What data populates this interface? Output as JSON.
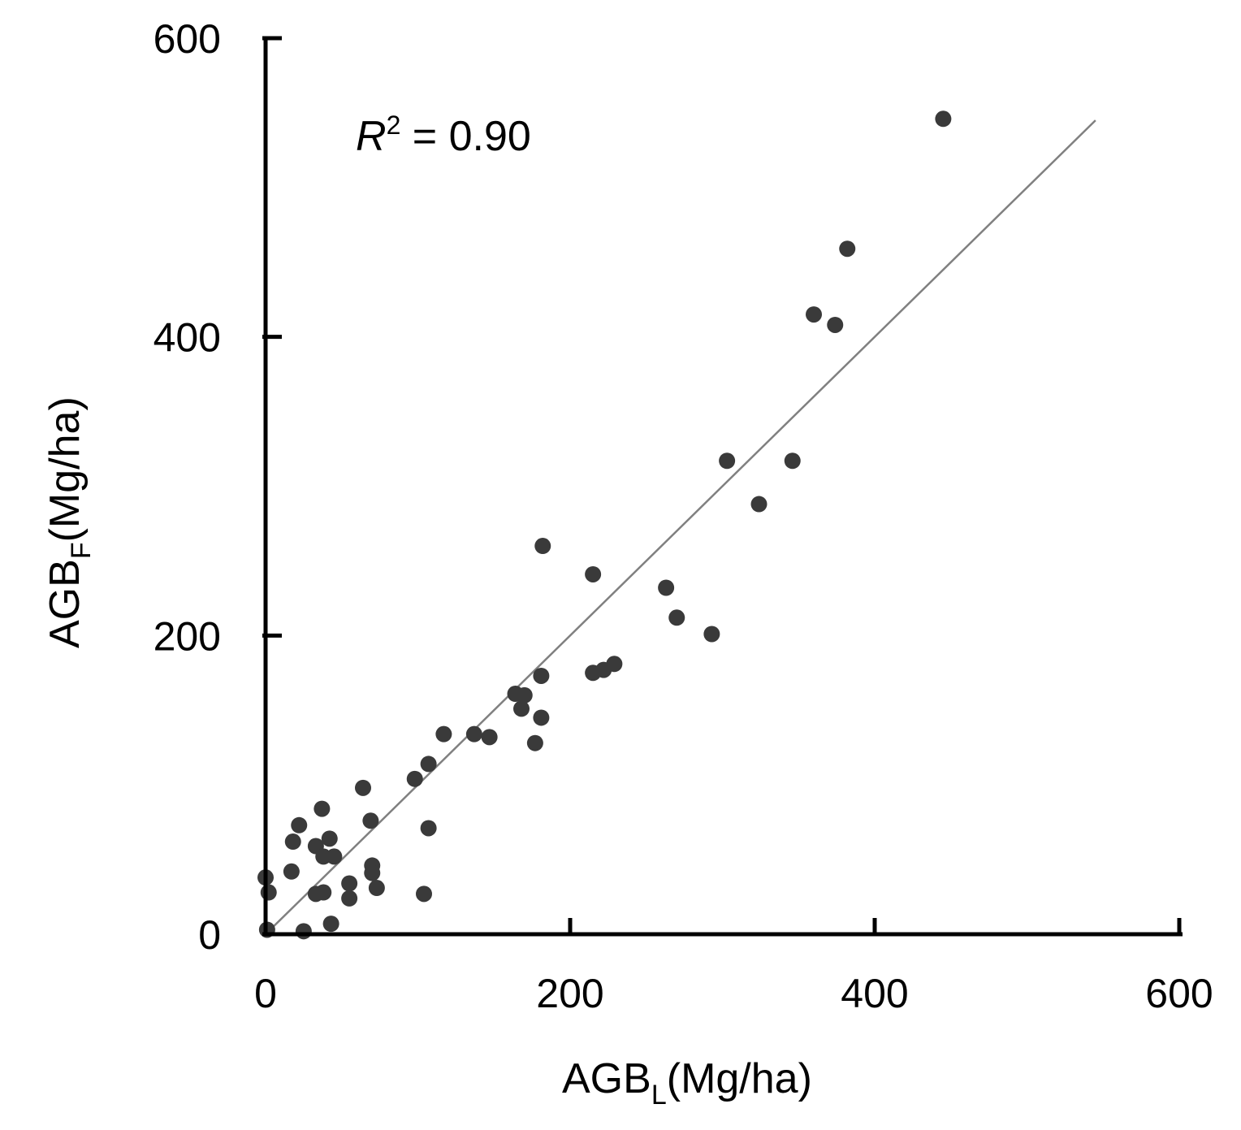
{
  "chart_data": {
    "type": "scatter",
    "title": "",
    "xlabel": {
      "main": "AGB",
      "sub": "L",
      "unit": "(Mg/ha)"
    },
    "ylabel": {
      "main": "AGB",
      "sub": "F",
      "unit": "(Mg/ha)"
    },
    "xlim": [
      0,
      600
    ],
    "ylim": [
      0,
      600
    ],
    "xticks": [
      "0",
      "200",
      "400",
      "600"
    ],
    "yticks": [
      "0",
      "200",
      "400",
      "600"
    ],
    "annotation": {
      "var": "R",
      "exp": "2",
      "text": " = 0.90"
    },
    "fit_line": {
      "x": [
        0,
        545
      ],
      "y": [
        0,
        545
      ],
      "color": "#808080"
    },
    "point_color": "#3a3a3a",
    "grid": false,
    "legend": "none",
    "points": [
      {
        "x": 1,
        "y": 3
      },
      {
        "x": 0,
        "y": 38
      },
      {
        "x": 2,
        "y": 28
      },
      {
        "x": 25,
        "y": 2
      },
      {
        "x": 43,
        "y": 7
      },
      {
        "x": 18,
        "y": 62
      },
      {
        "x": 22,
        "y": 73
      },
      {
        "x": 17,
        "y": 42
      },
      {
        "x": 37,
        "y": 84
      },
      {
        "x": 33,
        "y": 59
      },
      {
        "x": 38,
        "y": 52
      },
      {
        "x": 42,
        "y": 64
      },
      {
        "x": 45,
        "y": 52
      },
      {
        "x": 33,
        "y": 27
      },
      {
        "x": 38,
        "y": 28
      },
      {
        "x": 55,
        "y": 34
      },
      {
        "x": 55,
        "y": 24
      },
      {
        "x": 64,
        "y": 98
      },
      {
        "x": 69,
        "y": 76
      },
      {
        "x": 70,
        "y": 46
      },
      {
        "x": 70,
        "y": 41
      },
      {
        "x": 73,
        "y": 31
      },
      {
        "x": 98,
        "y": 104
      },
      {
        "x": 107,
        "y": 114
      },
      {
        "x": 107,
        "y": 71
      },
      {
        "x": 104,
        "y": 27
      },
      {
        "x": 117,
        "y": 134
      },
      {
        "x": 137,
        "y": 134
      },
      {
        "x": 147,
        "y": 132
      },
      {
        "x": 164,
        "y": 161
      },
      {
        "x": 170,
        "y": 160
      },
      {
        "x": 168,
        "y": 151
      },
      {
        "x": 181,
        "y": 145
      },
      {
        "x": 177,
        "y": 128
      },
      {
        "x": 181,
        "y": 173
      },
      {
        "x": 182,
        "y": 260
      },
      {
        "x": 215,
        "y": 175
      },
      {
        "x": 222,
        "y": 177
      },
      {
        "x": 229,
        "y": 181
      },
      {
        "x": 215,
        "y": 241
      },
      {
        "x": 263,
        "y": 232
      },
      {
        "x": 270,
        "y": 212
      },
      {
        "x": 293,
        "y": 201
      },
      {
        "x": 303,
        "y": 317
      },
      {
        "x": 324,
        "y": 288
      },
      {
        "x": 346,
        "y": 317
      },
      {
        "x": 360,
        "y": 415
      },
      {
        "x": 374,
        "y": 408
      },
      {
        "x": 382,
        "y": 459
      },
      {
        "x": 445,
        "y": 546
      }
    ]
  }
}
